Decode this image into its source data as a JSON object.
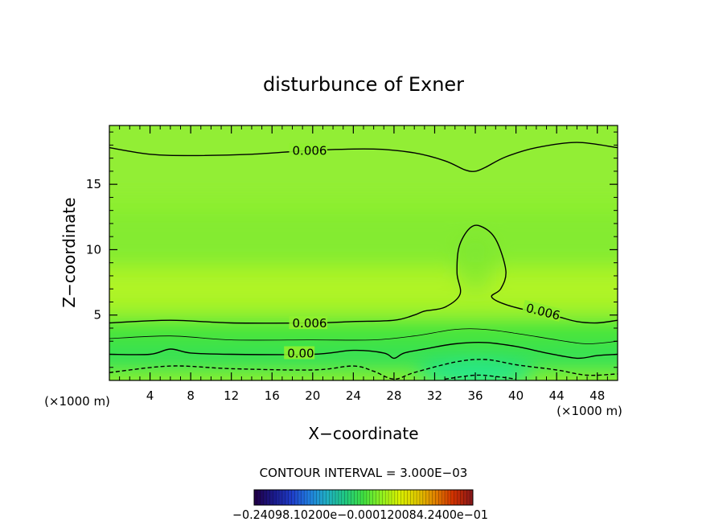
{
  "chart_data": {
    "type": "contour",
    "title": "disturbunce of Exner",
    "xlabel": "X−coordinate",
    "ylabel": "Z−coordinate",
    "x_unit_label": "(×1000 m)",
    "y_unit_label": "(×1000 m)",
    "xlim": [
      0,
      50
    ],
    "ylim": [
      0,
      19.5
    ],
    "x_ticks": [
      4,
      8,
      12,
      16,
      20,
      24,
      28,
      32,
      36,
      40,
      44,
      48
    ],
    "y_ticks": [
      5,
      10,
      15
    ],
    "contour_interval_text": "CONTOUR INTERVAL = 3.000E−03",
    "contour_labels": [
      {
        "text": "0.006",
        "x": 18,
        "z": 17.5
      },
      {
        "text": "0.006",
        "x": 18,
        "z": 4.3
      },
      {
        "text": "0.006",
        "x": 41,
        "z": 5.5
      },
      {
        "text": "0.00",
        "x": 17.5,
        "z": 2.0
      }
    ],
    "contours": [
      {
        "level": 0.006,
        "style": "solid",
        "points": [
          [
            0,
            17.8
          ],
          [
            4,
            17.3
          ],
          [
            8,
            17.2
          ],
          [
            14,
            17.3
          ],
          [
            20,
            17.6
          ],
          [
            26,
            17.7
          ],
          [
            30,
            17.4
          ],
          [
            33,
            16.8
          ],
          [
            35,
            16.1
          ],
          [
            36,
            16.0
          ],
          [
            37,
            16.3
          ],
          [
            39,
            17.1
          ],
          [
            42,
            17.8
          ],
          [
            46,
            18.2
          ],
          [
            50,
            17.8
          ]
        ]
      },
      {
        "level": 0.006,
        "style": "solid",
        "points": [
          [
            0,
            4.4
          ],
          [
            6,
            4.6
          ],
          [
            12,
            4.4
          ],
          [
            20,
            4.4
          ],
          [
            24,
            4.5
          ],
          [
            28,
            4.6
          ],
          [
            30,
            5.0
          ],
          [
            31,
            5.3
          ],
          [
            33,
            5.6
          ],
          [
            34.5,
            6.6
          ],
          [
            34.2,
            8.2
          ],
          [
            34.4,
            10.2
          ],
          [
            35.4,
            11.6
          ],
          [
            36.5,
            11.8
          ],
          [
            38,
            10.8
          ],
          [
            39,
            8.4
          ],
          [
            38.5,
            7.0
          ],
          [
            37.6,
            6.4
          ],
          [
            39,
            5.8
          ],
          [
            42,
            5.2
          ],
          [
            44,
            4.9
          ],
          [
            46,
            4.5
          ],
          [
            48,
            4.4
          ],
          [
            50,
            4.6
          ]
        ]
      },
      {
        "level": 0.003,
        "style": "solid",
        "points": [
          [
            0,
            3.2
          ],
          [
            6,
            3.4
          ],
          [
            12,
            3.1
          ],
          [
            20,
            3.1
          ],
          [
            26,
            3.1
          ],
          [
            30,
            3.4
          ],
          [
            34,
            3.9
          ],
          [
            37,
            3.9
          ],
          [
            40,
            3.6
          ],
          [
            44,
            3.1
          ],
          [
            47,
            2.8
          ],
          [
            50,
            3.0
          ]
        ]
      },
      {
        "level": 0.0,
        "style": "solid",
        "points": [
          [
            0,
            2.0
          ],
          [
            4,
            2.0
          ],
          [
            6,
            2.4
          ],
          [
            8,
            2.1
          ],
          [
            12,
            2.0
          ],
          [
            20,
            2.0
          ],
          [
            24,
            2.3
          ],
          [
            27,
            2.1
          ],
          [
            28,
            1.7
          ],
          [
            29,
            2.1
          ],
          [
            31,
            2.4
          ],
          [
            34,
            2.8
          ],
          [
            37,
            2.9
          ],
          [
            40,
            2.6
          ],
          [
            43,
            2.1
          ],
          [
            46,
            1.7
          ],
          [
            48,
            1.9
          ],
          [
            50,
            2.0
          ]
        ]
      },
      {
        "level": -0.003,
        "style": "dashed",
        "points": [
          [
            0,
            0.6
          ],
          [
            6,
            1.1
          ],
          [
            12,
            0.9
          ],
          [
            20,
            0.8
          ],
          [
            24,
            1.1
          ],
          [
            26,
            0.7
          ],
          [
            28,
            0.1
          ],
          [
            30,
            0.6
          ],
          [
            34,
            1.4
          ],
          [
            37,
            1.6
          ],
          [
            40,
            1.2
          ],
          [
            44,
            0.8
          ],
          [
            47,
            0.4
          ],
          [
            50,
            0.5
          ]
        ]
      },
      {
        "level": -0.006,
        "style": "dashed",
        "points": [
          [
            33,
            0.1
          ],
          [
            36,
            0.4
          ],
          [
            38,
            0.3
          ],
          [
            40,
            0.1
          ]
        ]
      }
    ],
    "colorbar": {
      "labels_text": "−0.24098.10200e−0.000120084.2400e−01",
      "colors": [
        "#20004a",
        "#1a1a8a",
        "#1e3cc8",
        "#2080e0",
        "#20b0c0",
        "#20c880",
        "#40e040",
        "#90f020",
        "#d8f000",
        "#e0c800",
        "#e08000",
        "#d03000",
        "#8a1818"
      ]
    },
    "field_colors": {
      "background": "#8ef02e",
      "upper_band": "#92ee34",
      "bright_band": "#b4f426",
      "mid_band": "#7ee830",
      "low_band_1": "#44e43e",
      "low_band_2": "#30e05a",
      "low_band_3": "#24e890"
    }
  }
}
